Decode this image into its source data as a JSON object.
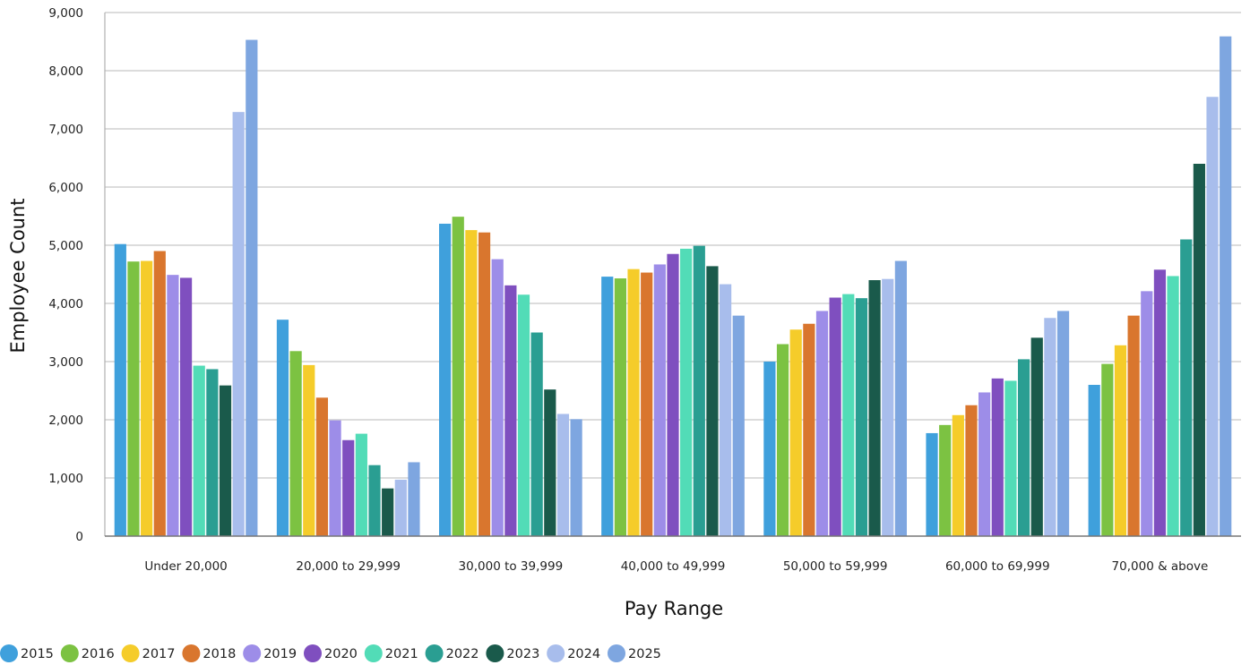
{
  "chart_data": {
    "type": "bar",
    "title": "",
    "xlabel": "Pay Range",
    "ylabel": "Employee Count",
    "ylim": [
      0,
      9000
    ],
    "yticks": [
      0,
      1000,
      2000,
      3000,
      4000,
      5000,
      6000,
      7000,
      8000,
      9000
    ],
    "ytick_labels": [
      "0",
      "1,000",
      "2,000",
      "3,000",
      "4,000",
      "5,000",
      "6,000",
      "7,000",
      "8,000",
      "9,000"
    ],
    "grid": true,
    "legend_position": "bottom-left",
    "categories": [
      "Under 20,000",
      "20,000 to 29,999",
      "30,000 to 39,999",
      "40,000 to 49,999",
      "50,000 to 59,999",
      "60,000 to 69,999",
      "70,000 & above"
    ],
    "series": [
      {
        "name": "2015",
        "color": "#3fa0dc",
        "values": [
          5020,
          3720,
          5370,
          4460,
          3000,
          1770,
          2600
        ]
      },
      {
        "name": "2016",
        "color": "#7cc242",
        "values": [
          4720,
          3180,
          5490,
          4430,
          3300,
          1910,
          2960
        ]
      },
      {
        "name": "2017",
        "color": "#f5cc2a",
        "values": [
          4730,
          2940,
          5260,
          4590,
          3550,
          2080,
          3280
        ]
      },
      {
        "name": "2018",
        "color": "#d9762e",
        "values": [
          4900,
          2380,
          5220,
          4530,
          3650,
          2250,
          3790
        ]
      },
      {
        "name": "2019",
        "color": "#9d8de8",
        "values": [
          4490,
          1990,
          4760,
          4670,
          3870,
          2470,
          4210
        ]
      },
      {
        "name": "2020",
        "color": "#7f4fbf",
        "values": [
          4440,
          1650,
          4310,
          4850,
          4100,
          2710,
          4580
        ]
      },
      {
        "name": "2021",
        "color": "#52dcb7",
        "values": [
          2930,
          1760,
          4150,
          4940,
          4160,
          2670,
          4470
        ]
      },
      {
        "name": "2022",
        "color": "#2a9e92",
        "values": [
          2870,
          1220,
          3500,
          4990,
          4090,
          3040,
          5100
        ]
      },
      {
        "name": "2023",
        "color": "#1a5a4b",
        "values": [
          2590,
          820,
          2520,
          4640,
          4400,
          3410,
          6400
        ]
      },
      {
        "name": "2024",
        "color": "#a8bdec",
        "values": [
          7290,
          970,
          2100,
          4330,
          4420,
          3750,
          7550
        ]
      },
      {
        "name": "2025",
        "color": "#7ea6e0",
        "values": [
          8530,
          1270,
          2010,
          3790,
          4730,
          3870,
          8590
        ]
      }
    ]
  }
}
